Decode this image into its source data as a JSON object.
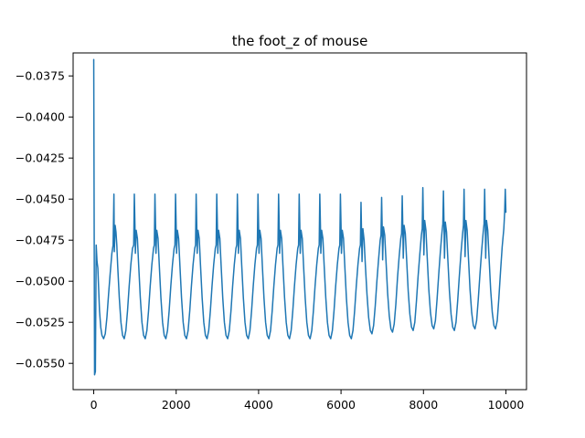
{
  "chart_data": {
    "type": "line",
    "title": "the foot_z of mouse",
    "xlabel": "",
    "ylabel": "",
    "xlim": [
      -500,
      10500
    ],
    "ylim": [
      -0.0566,
      -0.0361
    ],
    "xticks": [
      0,
      2000,
      4000,
      6000,
      8000,
      10000
    ],
    "xtick_labels": [
      "0",
      "2000",
      "4000",
      "6000",
      "8000",
      "10000"
    ],
    "yticks": [
      -0.0375,
      -0.04,
      -0.0425,
      -0.045,
      -0.0475,
      -0.05,
      -0.0525,
      -0.055
    ],
    "ytick_labels": [
      "−0.0375",
      "−0.0400",
      "−0.0425",
      "−0.0450",
      "−0.0475",
      "−0.0500",
      "−0.0525",
      "−0.0550"
    ],
    "grid": false,
    "line_color": "#1f77b4",
    "series": [
      {
        "name": "",
        "x": [
          0,
          20,
          40,
          60,
          80,
          100,
          120,
          140,
          170,
          200,
          240,
          280,
          320,
          360,
          400,
          440,
          470,
          490,
          500,
          520,
          540,
          560,
          580,
          620,
          660,
          700,
          740,
          780,
          820,
          860,
          900,
          940,
          970,
          985,
          1000,
          1010,
          1030,
          1060,
          1090,
          1130,
          1170,
          1210,
          1250,
          1290,
          1330,
          1370,
          1410,
          1450,
          1470,
          1485,
          1500,
          1510,
          1530,
          1560,
          1590,
          1630,
          1670,
          1710,
          1750,
          1790,
          1830,
          1870,
          1910,
          1950,
          1970,
          1985,
          2000,
          2010,
          2030,
          2060,
          2090,
          2130,
          2170,
          2210,
          2250,
          2290,
          2330,
          2370,
          2410,
          2450,
          2470,
          2485,
          2500,
          2510,
          2530,
          2560,
          2590,
          2630,
          2670,
          2710,
          2750,
          2790,
          2830,
          2870,
          2910,
          2950,
          2970,
          2985,
          3000,
          3010,
          3030,
          3060,
          3090,
          3130,
          3170,
          3210,
          3250,
          3290,
          3330,
          3370,
          3410,
          3450,
          3470,
          3485,
          3500,
          3510,
          3530,
          3560,
          3590,
          3630,
          3670,
          3710,
          3750,
          3790,
          3830,
          3870,
          3910,
          3950,
          3970,
          3985,
          4000,
          4010,
          4030,
          4060,
          4090,
          4130,
          4170,
          4210,
          4250,
          4290,
          4330,
          4370,
          4410,
          4450,
          4470,
          4485,
          4500,
          4510,
          4530,
          4560,
          4590,
          4630,
          4670,
          4710,
          4750,
          4790,
          4830,
          4870,
          4910,
          4950,
          4970,
          4985,
          5000,
          5010,
          5030,
          5060,
          5090,
          5130,
          5170,
          5210,
          5250,
          5290,
          5330,
          5370,
          5410,
          5450,
          5470,
          5485,
          5500,
          5510,
          5530,
          5560,
          5590,
          5630,
          5670,
          5710,
          5750,
          5790,
          5830,
          5870,
          5910,
          5950,
          5970,
          5985,
          6000,
          6010,
          6030,
          6060,
          6090,
          6130,
          6170,
          6210,
          6250,
          6290,
          6330,
          6370,
          6410,
          6450,
          6470,
          6485,
          6500,
          6510,
          6530,
          6560,
          6590,
          6630,
          6670,
          6710,
          6750,
          6790,
          6830,
          6870,
          6910,
          6950,
          6970,
          6985,
          7000,
          7010,
          7030,
          7060,
          7090,
          7130,
          7170,
          7210,
          7250,
          7290,
          7330,
          7370,
          7410,
          7450,
          7470,
          7485,
          7500,
          7510,
          7530,
          7560,
          7590,
          7630,
          7670,
          7710,
          7750,
          7790,
          7830,
          7870,
          7910,
          7950,
          7970,
          7985,
          8000,
          8010,
          8030,
          8060,
          8090,
          8130,
          8170,
          8210,
          8250,
          8290,
          8330,
          8370,
          8410,
          8450,
          8470,
          8485,
          8500,
          8510,
          8530,
          8560,
          8590,
          8630,
          8670,
          8710,
          8750,
          8790,
          8830,
          8870,
          8910,
          8950,
          8970,
          8985,
          9000,
          9010,
          9030,
          9060,
          9090,
          9130,
          9170,
          9210,
          9250,
          9290,
          9330,
          9370,
          9410,
          9450,
          9470,
          9485,
          9500,
          9510,
          9530,
          9560,
          9590,
          9630,
          9670,
          9710,
          9750,
          9790,
          9830,
          9870,
          9910,
          9950,
          9970,
          9985,
          10000
        ],
        "y": [
          -0.0365,
          -0.0557,
          -0.0555,
          -0.0478,
          -0.0488,
          -0.0492,
          -0.0505,
          -0.0518,
          -0.0528,
          -0.0533,
          -0.0535,
          -0.0532,
          -0.0522,
          -0.0508,
          -0.0495,
          -0.0483,
          -0.0478,
          -0.0447,
          -0.0482,
          -0.0466,
          -0.047,
          -0.0478,
          -0.049,
          -0.051,
          -0.0525,
          -0.0533,
          -0.0535,
          -0.053,
          -0.0518,
          -0.0503,
          -0.049,
          -0.048,
          -0.0478,
          -0.0447,
          -0.0466,
          -0.0483,
          -0.0469,
          -0.0474,
          -0.049,
          -0.051,
          -0.0525,
          -0.0533,
          -0.0535,
          -0.053,
          -0.0518,
          -0.0503,
          -0.049,
          -0.048,
          -0.0478,
          -0.0447,
          -0.0466,
          -0.0483,
          -0.0469,
          -0.0474,
          -0.049,
          -0.051,
          -0.0525,
          -0.0533,
          -0.0535,
          -0.053,
          -0.0518,
          -0.0503,
          -0.049,
          -0.048,
          -0.0478,
          -0.0447,
          -0.0466,
          -0.0483,
          -0.0469,
          -0.0474,
          -0.049,
          -0.051,
          -0.0525,
          -0.0533,
          -0.0535,
          -0.053,
          -0.0518,
          -0.0503,
          -0.049,
          -0.048,
          -0.0478,
          -0.0447,
          -0.0466,
          -0.0483,
          -0.0469,
          -0.0474,
          -0.049,
          -0.051,
          -0.0525,
          -0.0533,
          -0.0535,
          -0.053,
          -0.0518,
          -0.0503,
          -0.049,
          -0.048,
          -0.0478,
          -0.0447,
          -0.0466,
          -0.0483,
          -0.0469,
          -0.0474,
          -0.049,
          -0.051,
          -0.0525,
          -0.0533,
          -0.0535,
          -0.053,
          -0.0518,
          -0.0503,
          -0.049,
          -0.048,
          -0.0478,
          -0.0447,
          -0.0466,
          -0.0483,
          -0.0469,
          -0.0474,
          -0.049,
          -0.051,
          -0.0525,
          -0.0533,
          -0.0535,
          -0.053,
          -0.0518,
          -0.0503,
          -0.049,
          -0.048,
          -0.0478,
          -0.0447,
          -0.0466,
          -0.0483,
          -0.0469,
          -0.0474,
          -0.049,
          -0.051,
          -0.0525,
          -0.0533,
          -0.0535,
          -0.053,
          -0.0518,
          -0.0503,
          -0.049,
          -0.048,
          -0.0478,
          -0.0447,
          -0.0466,
          -0.0483,
          -0.0469,
          -0.0474,
          -0.049,
          -0.051,
          -0.0525,
          -0.0533,
          -0.0535,
          -0.053,
          -0.0518,
          -0.0503,
          -0.049,
          -0.048,
          -0.0478,
          -0.0447,
          -0.0466,
          -0.0483,
          -0.0469,
          -0.0474,
          -0.049,
          -0.051,
          -0.0525,
          -0.0533,
          -0.0535,
          -0.053,
          -0.0518,
          -0.0503,
          -0.049,
          -0.048,
          -0.0478,
          -0.0447,
          -0.0466,
          -0.0483,
          -0.0469,
          -0.0474,
          -0.049,
          -0.051,
          -0.0525,
          -0.0533,
          -0.0535,
          -0.053,
          -0.0518,
          -0.0503,
          -0.049,
          -0.048,
          -0.0478,
          -0.0447,
          -0.0466,
          -0.0483,
          -0.0469,
          -0.0474,
          -0.049,
          -0.051,
          -0.0525,
          -0.0533,
          -0.0535,
          -0.053,
          -0.0518,
          -0.0503,
          -0.049,
          -0.048,
          -0.0478,
          -0.0452,
          -0.0474,
          -0.0488,
          -0.0468,
          -0.0475,
          -0.049,
          -0.0508,
          -0.0522,
          -0.053,
          -0.0532,
          -0.0527,
          -0.0515,
          -0.05,
          -0.0487,
          -0.0475,
          -0.0472,
          -0.0449,
          -0.047,
          -0.0487,
          -0.0467,
          -0.0472,
          -0.0487,
          -0.0507,
          -0.0521,
          -0.0529,
          -0.0531,
          -0.0526,
          -0.0514,
          -0.0498,
          -0.0485,
          -0.0474,
          -0.0471,
          -0.0448,
          -0.0469,
          -0.0486,
          -0.0466,
          -0.0471,
          -0.0486,
          -0.0506,
          -0.052,
          -0.0528,
          -0.053,
          -0.0525,
          -0.0512,
          -0.0497,
          -0.0484,
          -0.0472,
          -0.0468,
          -0.0443,
          -0.0465,
          -0.0484,
          -0.0463,
          -0.0469,
          -0.0485,
          -0.0505,
          -0.0519,
          -0.0527,
          -0.0529,
          -0.0524,
          -0.0511,
          -0.0496,
          -0.0482,
          -0.047,
          -0.0465,
          -0.0445,
          -0.0468,
          -0.0486,
          -0.0464,
          -0.047,
          -0.0486,
          -0.0506,
          -0.052,
          -0.0528,
          -0.053,
          -0.0525,
          -0.0512,
          -0.0497,
          -0.0483,
          -0.0471,
          -0.0466,
          -0.0444,
          -0.0467,
          -0.0485,
          -0.0463,
          -0.0469,
          -0.0485,
          -0.0505,
          -0.0519,
          -0.0527,
          -0.0529,
          -0.0524,
          -0.0511,
          -0.0496,
          -0.0482,
          -0.047,
          -0.0465,
          -0.0444,
          -0.0467,
          -0.0486,
          -0.0463,
          -0.0469,
          -0.0485,
          -0.0505,
          -0.0519,
          -0.0527,
          -0.0529,
          -0.0524,
          -0.051,
          -0.0494,
          -0.0479,
          -0.0468,
          -0.0458,
          -0.0444,
          -0.0458
        ]
      }
    ]
  }
}
